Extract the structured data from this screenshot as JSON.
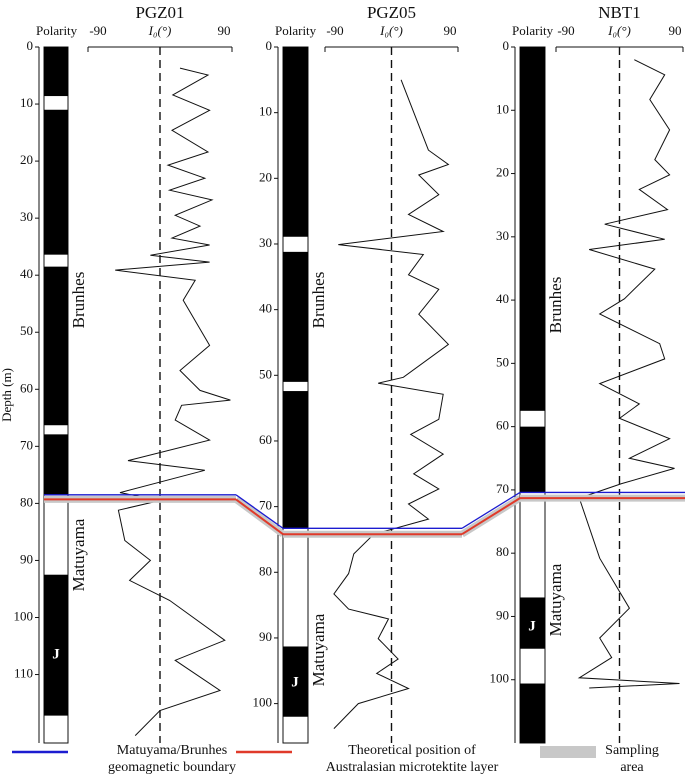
{
  "chart_data": [
    {
      "type": "line",
      "title": "PGZ01",
      "polarity_label": "Polarity",
      "x_label": "I₀(°)",
      "xlim": [
        -90,
        90
      ],
      "xticks": [
        -90,
        90
      ],
      "reference_line": 0,
      "ylim": [
        0,
        122
      ],
      "yticks": [
        0,
        10,
        20,
        30,
        40,
        50,
        60,
        70,
        80,
        90,
        100,
        110
      ],
      "upper_chron": "Brunhes",
      "lower_chron": "Matuyama",
      "subchron": "J",
      "polarity_zones": [
        [
          0,
          8.6
        ],
        [
          11,
          36.4
        ],
        [
          38.5,
          66.3
        ],
        [
          67.9,
          78.5
        ],
        [
          92.5,
          117.2
        ]
      ],
      "boundary_depth": 78.5,
      "microtektite_depth": 79.3,
      "series": [
        {
          "color": "#111111",
          "depth": [
            3.7,
            4.9,
            8.4,
            11.1,
            14.6,
            18.4,
            20.7,
            23,
            25.1,
            26.8,
            29.5,
            31.4,
            33.5,
            34.7,
            36.5,
            37.7,
            39.1,
            40.9,
            44.4,
            52.3,
            56.7,
            60.2,
            61.9,
            62.8,
            65.4,
            68.9,
            72.5,
            74.2,
            78.1,
            79.5,
            81.2,
            86.5,
            90,
            93.5,
            97,
            104,
            107.5,
            112.8,
            116.3,
            120.7
          ],
          "inclination": [
            25,
            60,
            16,
            62,
            15,
            60,
            10,
            56,
            12,
            65,
            19,
            50,
            15,
            62,
            -12,
            62,
            -56,
            44,
            29,
            62,
            25,
            50,
            88,
            27,
            19,
            62,
            -40,
            56,
            -50,
            0,
            -52,
            -44,
            -12,
            -38,
            12,
            81,
            19,
            75,
            0,
            -31
          ]
        }
      ]
    },
    {
      "type": "line",
      "title": "PGZ05",
      "polarity_label": "Polarity",
      "x_label": "I₀(°)",
      "xlim": [
        -90,
        90
      ],
      "xticks": [
        -90,
        90
      ],
      "reference_line": 0,
      "ylim": [
        0,
        106
      ],
      "yticks": [
        0,
        10,
        20,
        30,
        40,
        50,
        60,
        70,
        80,
        90,
        100
      ],
      "upper_chron": "Brunhes",
      "lower_chron": "Matuyama",
      "subchron": "J",
      "polarity_zones": [
        [
          0,
          28.9
        ],
        [
          31.2,
          51
        ],
        [
          52.4,
          73.3
        ],
        [
          91.3,
          102
        ]
      ],
      "boundary_depth": 73.3,
      "microtektite_depth": 74.2,
      "series": [
        {
          "color": "#111111",
          "depth": [
            5,
            15.7,
            17.9,
            19.5,
            22.5,
            25.5,
            28.1,
            30.1,
            31.6,
            34.7,
            36.9,
            40.7,
            45.3,
            50.3,
            51.2,
            52.9,
            56.7,
            59,
            62,
            65,
            67.3,
            69.6,
            71.9,
            74.2,
            77.2,
            80.2,
            83.3,
            85.6,
            87.1,
            90.1,
            93.2,
            95.4,
            97.7,
            100,
            103.8
          ],
          "inclination": [
            13,
            50,
            77,
            37,
            64,
            23,
            70,
            -72,
            43,
            23,
            64,
            37,
            77,
            16,
            -18,
            70,
            64,
            26,
            70,
            30,
            64,
            23,
            50,
            -24,
            -51,
            -58,
            -78,
            -58,
            -4,
            -18,
            9,
            -20,
            23,
            -45,
            -78
          ]
        }
      ]
    },
    {
      "type": "line",
      "title": "NBT1",
      "polarity_label": "Polarity",
      "x_label": "I₀(°)",
      "xlim": [
        -90,
        90
      ],
      "xticks": [
        -90,
        90
      ],
      "reference_line": 0,
      "ylim": [
        0,
        110
      ],
      "yticks": [
        0,
        10,
        20,
        30,
        40,
        50,
        60,
        70,
        80,
        90,
        100
      ],
      "upper_chron": "Brunhes",
      "lower_chron": "Matuyama",
      "subchron": "J",
      "polarity_zones": [
        [
          0,
          57.5
        ],
        [
          60,
          70.4
        ],
        [
          87,
          95.1
        ],
        [
          100.6,
          110
        ]
      ],
      "boundary_depth": 70.4,
      "microtektite_depth": 71.3,
      "series": [
        {
          "color": "#111111",
          "depth": [
            2,
            4.4,
            8.3,
            13.1,
            17.8,
            20.2,
            22.5,
            25.7,
            28,
            30.4,
            32,
            35.1,
            39.8,
            42.2,
            46.9,
            49.3,
            53.2,
            56.4,
            58.7,
            61.9,
            65,
            66.6,
            69,
            71.3,
            80.8,
            88.7,
            93.4,
            96.5,
            99.7,
            100.6,
            101.3
          ],
          "inclination": [
            21,
            64,
            43,
            71,
            50,
            71,
            28,
            68,
            -21,
            64,
            -43,
            50,
            7,
            -28,
            57,
            64,
            -28,
            28,
            0,
            71,
            14,
            78,
            3,
            -57,
            -28,
            14,
            -28,
            -11,
            -57,
            85,
            -43
          ]
        }
      ]
    }
  ],
  "y_label": "Depth (m)",
  "legend": [
    {
      "name": [
        "Matuyama/Brunhes",
        "geomagnetic boundary"
      ],
      "color": "#1c1cd0"
    },
    {
      "name": [
        "Theoretical position of",
        "Australasian microtektite layer"
      ],
      "color": "#e03a2a"
    },
    {
      "name": [
        "Sampling",
        "area"
      ],
      "color": "#c8c8c8"
    }
  ]
}
